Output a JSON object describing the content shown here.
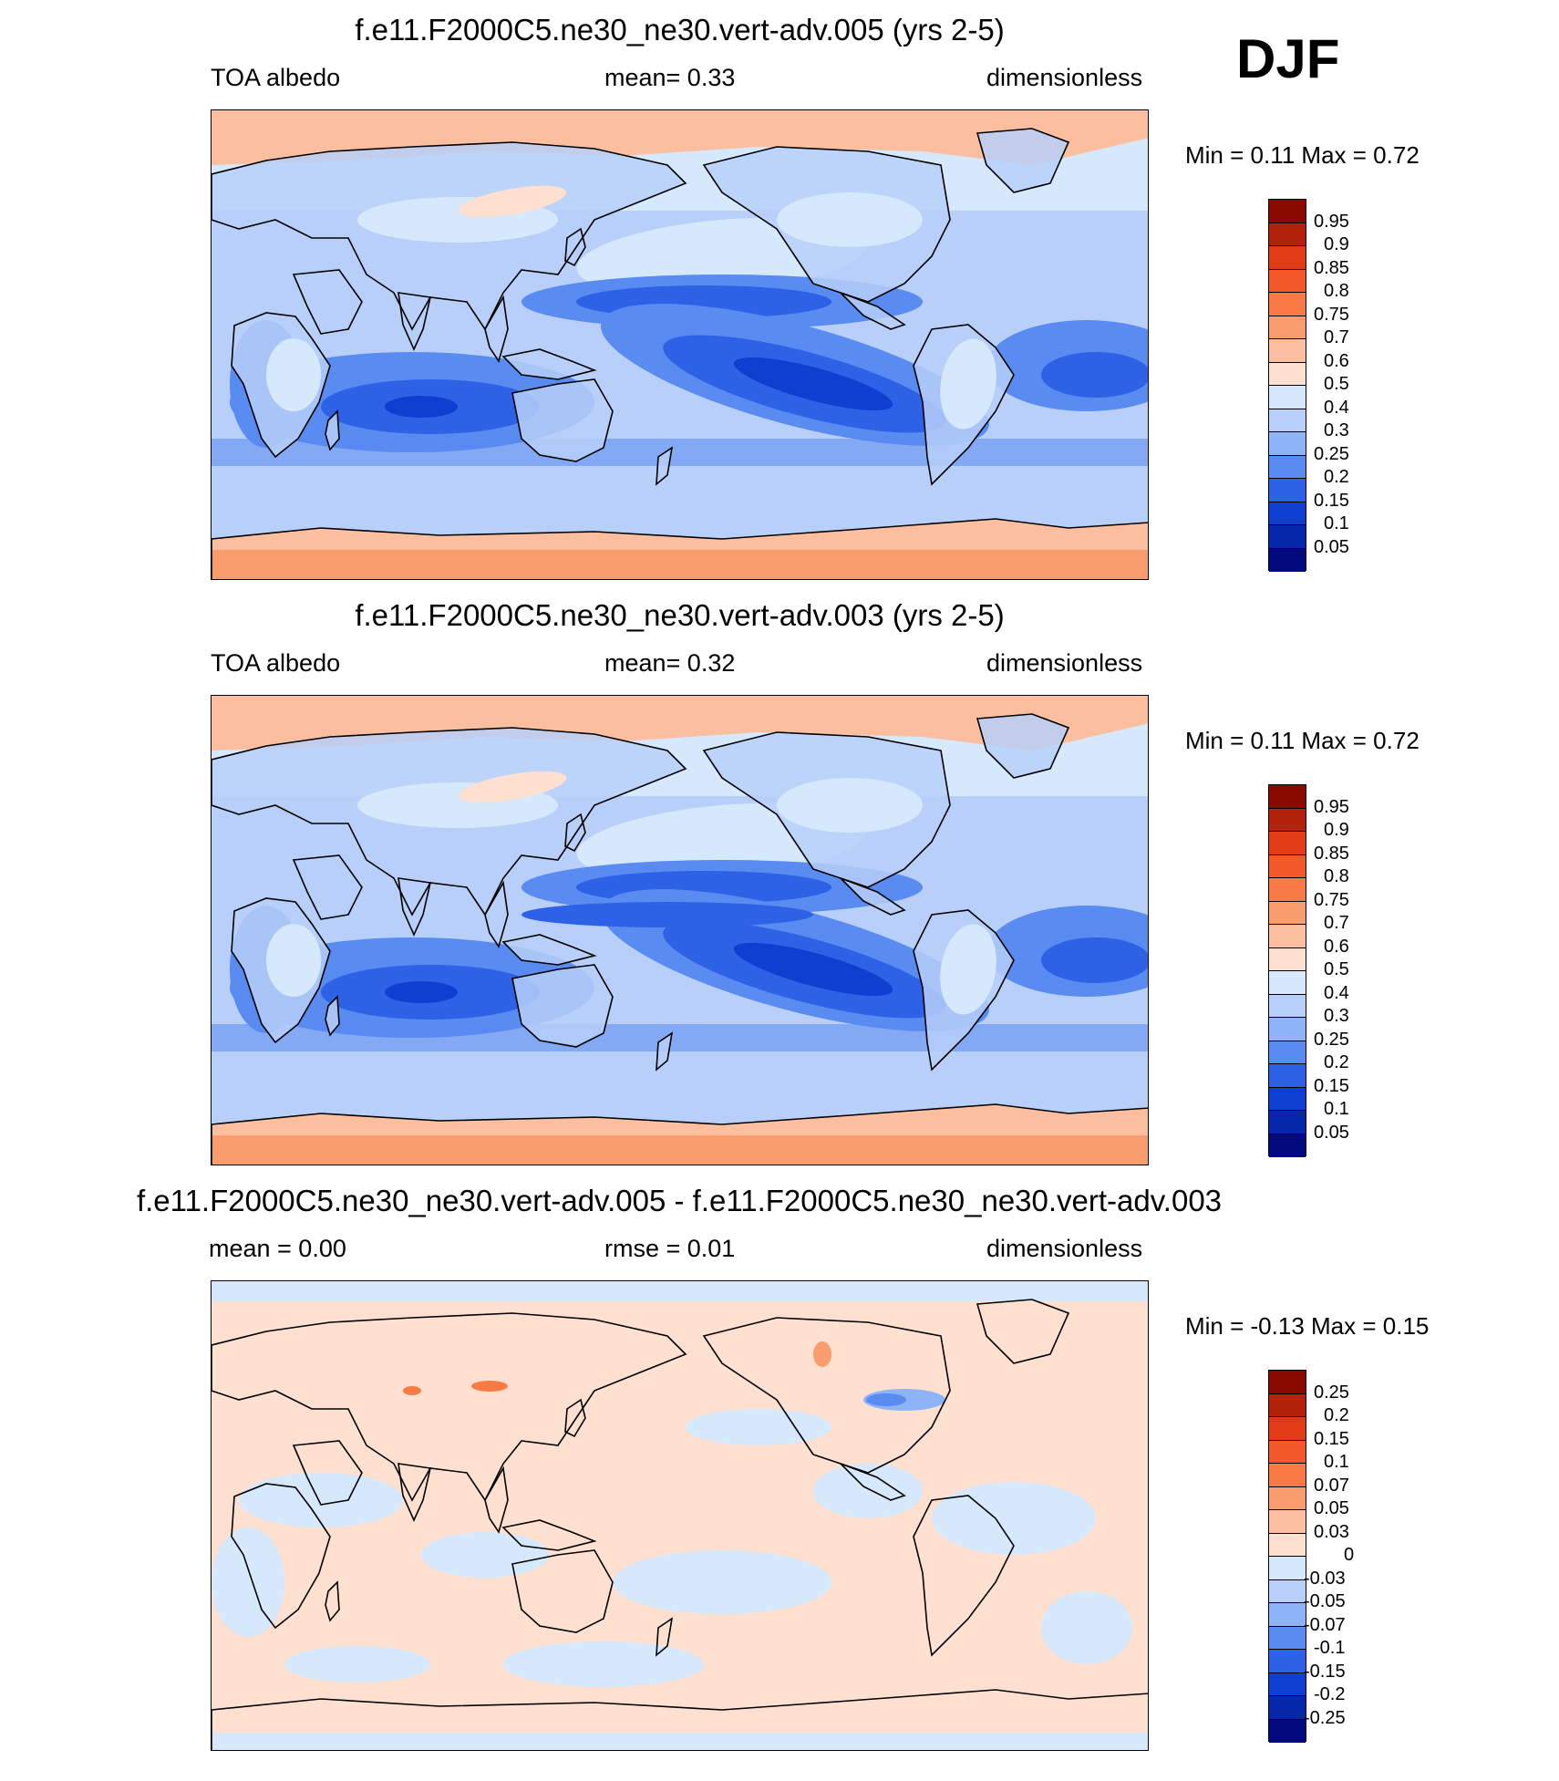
{
  "season": "DJF",
  "panels": [
    {
      "title": "f.e11.F2000C5.ne30_ne30.vert-adv.005 (yrs 2-5)",
      "left": "TOA albedo",
      "center": "mean=   0.33",
      "right": "dimensionless",
      "minmax": "Min =   0.11 Max =   0.72",
      "kind": "field"
    },
    {
      "title": "f.e11.F2000C5.ne30_ne30.vert-adv.003 (yrs 2-5)",
      "left": "TOA albedo",
      "center": "mean=   0.32",
      "right": "dimensionless",
      "minmax": "Min =   0.11 Max =   0.72",
      "kind": "field"
    },
    {
      "title": "f.e11.F2000C5.ne30_ne30.vert-adv.005 - f.e11.F2000C5.ne30_ne30.vert-adv.003",
      "left": "mean =   0.00",
      "center": "rmse =   0.01",
      "right": "dimensionless",
      "minmax": "Min =  -0.13 Max =   0.15",
      "kind": "diff"
    }
  ],
  "colorbars": {
    "field": {
      "labels": [
        "0.95",
        "0.9",
        "0.85",
        "0.8",
        "0.75",
        "0.7",
        "0.6",
        "0.5",
        "0.4",
        "0.3",
        "0.25",
        "0.2",
        "0.15",
        "0.1",
        "0.05"
      ],
      "colors": [
        "#8a0a00",
        "#b3230b",
        "#e03b14",
        "#f4592b",
        "#f87a45",
        "#f99d6e",
        "#fbbfa0",
        "#fde0d0",
        "#d6e8fb",
        "#b7cff9",
        "#8fb3f7",
        "#5a8bf1",
        "#2d62e6",
        "#0f3fd0",
        "#0527a8",
        "#020a7e"
      ]
    },
    "diff": {
      "labels": [
        "0.25",
        "0.2",
        "0.15",
        "0.1",
        "0.07",
        "0.05",
        "0.03",
        "0",
        "-0.03",
        "-0.05",
        "-0.07",
        "-0.1",
        "-0.15",
        "-0.2",
        "-0.25"
      ],
      "colors": [
        "#8a0a00",
        "#b3230b",
        "#e03b14",
        "#f4592b",
        "#f87a45",
        "#f99d6e",
        "#fbbfa0",
        "#fde0d0",
        "#d6e8fb",
        "#b7cff9",
        "#8fb3f7",
        "#5a8bf1",
        "#2d62e6",
        "#0f3fd0",
        "#0527a8",
        "#020a7e"
      ]
    }
  }
}
